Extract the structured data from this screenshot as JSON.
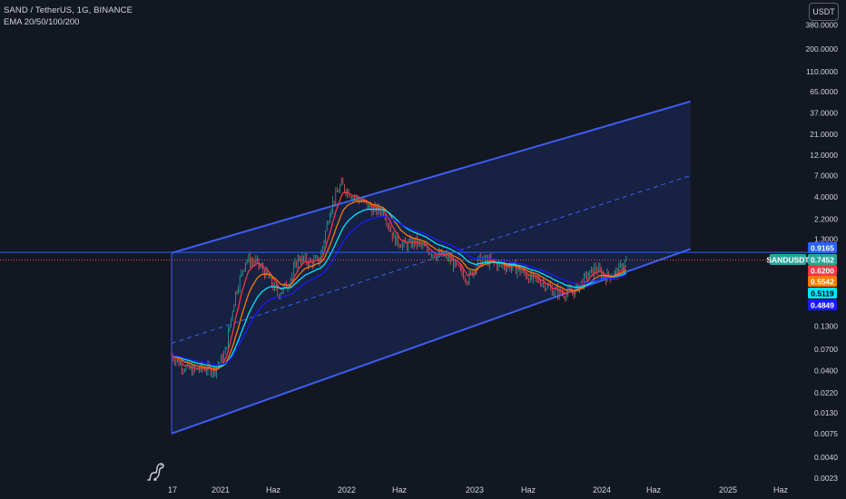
{
  "header": {
    "title": "SAND / TetherUS, 1G, BINANCE",
    "indicator": "EMA 20/50/100/200",
    "currency_button": "USDT"
  },
  "price_tags": [
    {
      "label": "0.9165",
      "color": "#2962ff",
      "text_color": "#ffffff"
    },
    {
      "label": "0.7452",
      "color": "#26a69a",
      "text_color": "#ffffff",
      "symbol": "SANDUSDT"
    },
    {
      "label": "0.6200",
      "color": "#f23645",
      "text_color": "#ffffff"
    },
    {
      "label": "0.5542",
      "color": "#f57c00",
      "text_color": "#ffffff"
    },
    {
      "label": "0.5119",
      "color": "#00e5ff",
      "text_color": "#000000"
    },
    {
      "label": "0.4849",
      "color": "#1a1aff",
      "text_color": "#ffffff"
    }
  ],
  "chart_data": {
    "type": "candlestick",
    "title": "SAND / TetherUS, 1G, BINANCE",
    "yscale": "log",
    "ylim": [
      0.0023,
      380
    ],
    "y_ticks": [
      "380.0000",
      "200.0000",
      "110.0000",
      "65.0000",
      "37.0000",
      "21.0000",
      "12.0000",
      "7.0000",
      "4.0000",
      "2.2000",
      "1.3000",
      "0.1300",
      "0.0700",
      "0.0400",
      "0.0220",
      "0.0130",
      "0.0075",
      "0.0040",
      "0.0023"
    ],
    "x_ticks": [
      "17",
      "2021",
      "Haz",
      "2022",
      "Haz",
      "2023",
      "Haz",
      "2024",
      "Haz",
      "2025",
      "Haz"
    ],
    "price_path": [
      [
        "2020-08",
        0.06
      ],
      [
        "2020-09",
        0.045
      ],
      [
        "2020-10",
        0.04
      ],
      [
        "2020-11",
        0.042
      ],
      [
        "2020-12",
        0.04
      ],
      [
        "2021-01",
        0.06
      ],
      [
        "2021-02",
        0.3
      ],
      [
        "2021-03",
        0.75
      ],
      [
        "2021-04",
        0.7
      ],
      [
        "2021-05",
        0.5
      ],
      [
        "2021-06",
        0.3
      ],
      [
        "2021-07",
        0.4
      ],
      [
        "2021-08",
        0.8
      ],
      [
        "2021-09",
        0.7
      ],
      [
        "2021-10",
        0.75
      ],
      [
        "2021-11",
        3.0
      ],
      [
        "2021-12",
        5.5
      ],
      [
        "2022-01",
        4.2
      ],
      [
        "2022-02",
        3.5
      ],
      [
        "2022-03",
        2.8
      ],
      [
        "2022-04",
        2.8
      ],
      [
        "2022-05",
        1.3
      ],
      [
        "2022-06",
        1.1
      ],
      [
        "2022-07",
        1.2
      ],
      [
        "2022-08",
        1.0
      ],
      [
        "2022-09",
        0.85
      ],
      [
        "2022-10",
        0.82
      ],
      [
        "2022-11",
        0.6
      ],
      [
        "2022-12",
        0.45
      ],
      [
        "2023-01",
        0.75
      ],
      [
        "2023-02",
        0.72
      ],
      [
        "2023-03",
        0.65
      ],
      [
        "2023-04",
        0.63
      ],
      [
        "2023-05",
        0.55
      ],
      [
        "2023-06",
        0.45
      ],
      [
        "2023-07",
        0.42
      ],
      [
        "2023-08",
        0.33
      ],
      [
        "2023-09",
        0.31
      ],
      [
        "2023-10",
        0.32
      ],
      [
        "2023-11",
        0.45
      ],
      [
        "2023-12",
        0.6
      ],
      [
        "2024-01",
        0.48
      ],
      [
        "2024-02",
        0.53
      ],
      [
        "2024-03",
        0.75
      ]
    ],
    "ema_series": [
      {
        "name": "EMA 20",
        "color": "#f23645",
        "value": 0.62
      },
      {
        "name": "EMA 50",
        "color": "#f57c00",
        "value": 0.5542
      },
      {
        "name": "EMA 100",
        "color": "#00e5ff",
        "value": 0.5119
      },
      {
        "name": "EMA 200",
        "color": "#1a1aff",
        "value": 0.4849
      }
    ],
    "channel": {
      "start_date": "2020-08",
      "end_date": "2024-09",
      "upper": [
        0.9,
        50
      ],
      "lower": [
        0.0075,
        1.0
      ],
      "middle": [
        0.082,
        7.0
      ]
    },
    "horizontal_line": 0.9165,
    "last_price": 0.7452,
    "grid": false,
    "legend": "top-left"
  }
}
